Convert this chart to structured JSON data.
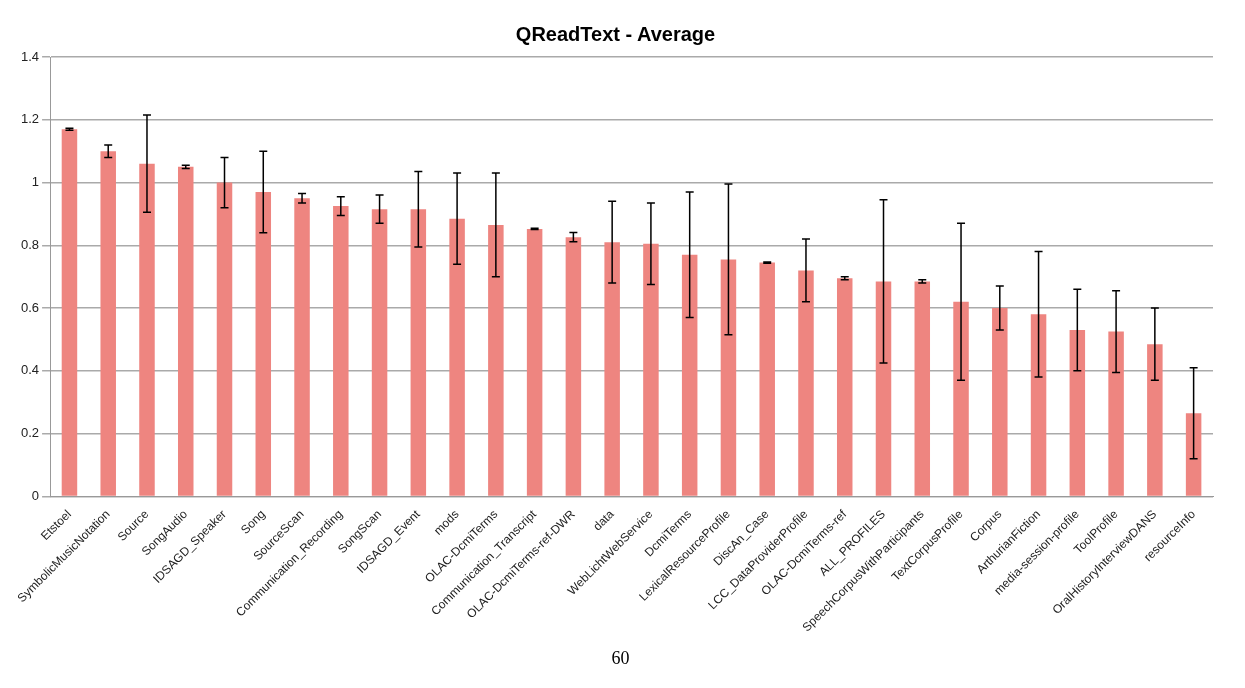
{
  "chart_data": {
    "type": "bar",
    "title": "QReadText - Average",
    "categories": [
      "Etstoel",
      "SymbolicMusicNotation",
      "Source",
      "SongAudio",
      "IDSAGD_Speaker",
      "Song",
      "SourceScan",
      "Communication_Recording",
      "SongScan",
      "IDSAGD_Event",
      "mods",
      "OLAC-DcmiTerms",
      "Communication_Transcript",
      "OLAC-DcmiTerms-ref-DWR",
      "data",
      "WebLichtWebService",
      "DcmiTerms",
      "LexicalResourceProfile",
      "DiscAn_Case",
      "LCC_DataProviderProfile",
      "OLAC-DcmiTerms-ref",
      "ALL_PROFILES",
      "SpeechCorpusWithParticipants",
      "TextCorpusProfile",
      "Corpus",
      "ArthurianFiction",
      "media-session-profile",
      "ToolProfile",
      "OralHistoryInterviewDANS",
      "resourceInfo"
    ],
    "values": [
      1.17,
      1.1,
      1.06,
      1.05,
      1.0,
      0.97,
      0.95,
      0.925,
      0.915,
      0.915,
      0.885,
      0.865,
      0.852,
      0.826,
      0.81,
      0.805,
      0.77,
      0.755,
      0.745,
      0.72,
      0.695,
      0.685,
      0.685,
      0.62,
      0.6,
      0.58,
      0.53,
      0.525,
      0.485,
      0.265
    ],
    "errors": [
      0.003,
      0.02,
      0.155,
      0.005,
      0.08,
      0.13,
      0.015,
      0.03,
      0.045,
      0.12,
      0.145,
      0.165,
      0.002,
      0.015,
      0.13,
      0.13,
      0.2,
      0.24,
      0.002,
      0.1,
      0.005,
      0.26,
      0.005,
      0.25,
      0.07,
      0.2,
      0.13,
      0.13,
      0.115,
      0.145
    ],
    "color": "#ee8580",
    "ylim": [
      0,
      1.4
    ],
    "yticks": [
      0,
      0.2,
      0.4,
      0.6,
      0.8,
      1,
      1.2,
      1.4
    ],
    "grid": "y",
    "legend": false,
    "annotations": [
      "60"
    ]
  }
}
